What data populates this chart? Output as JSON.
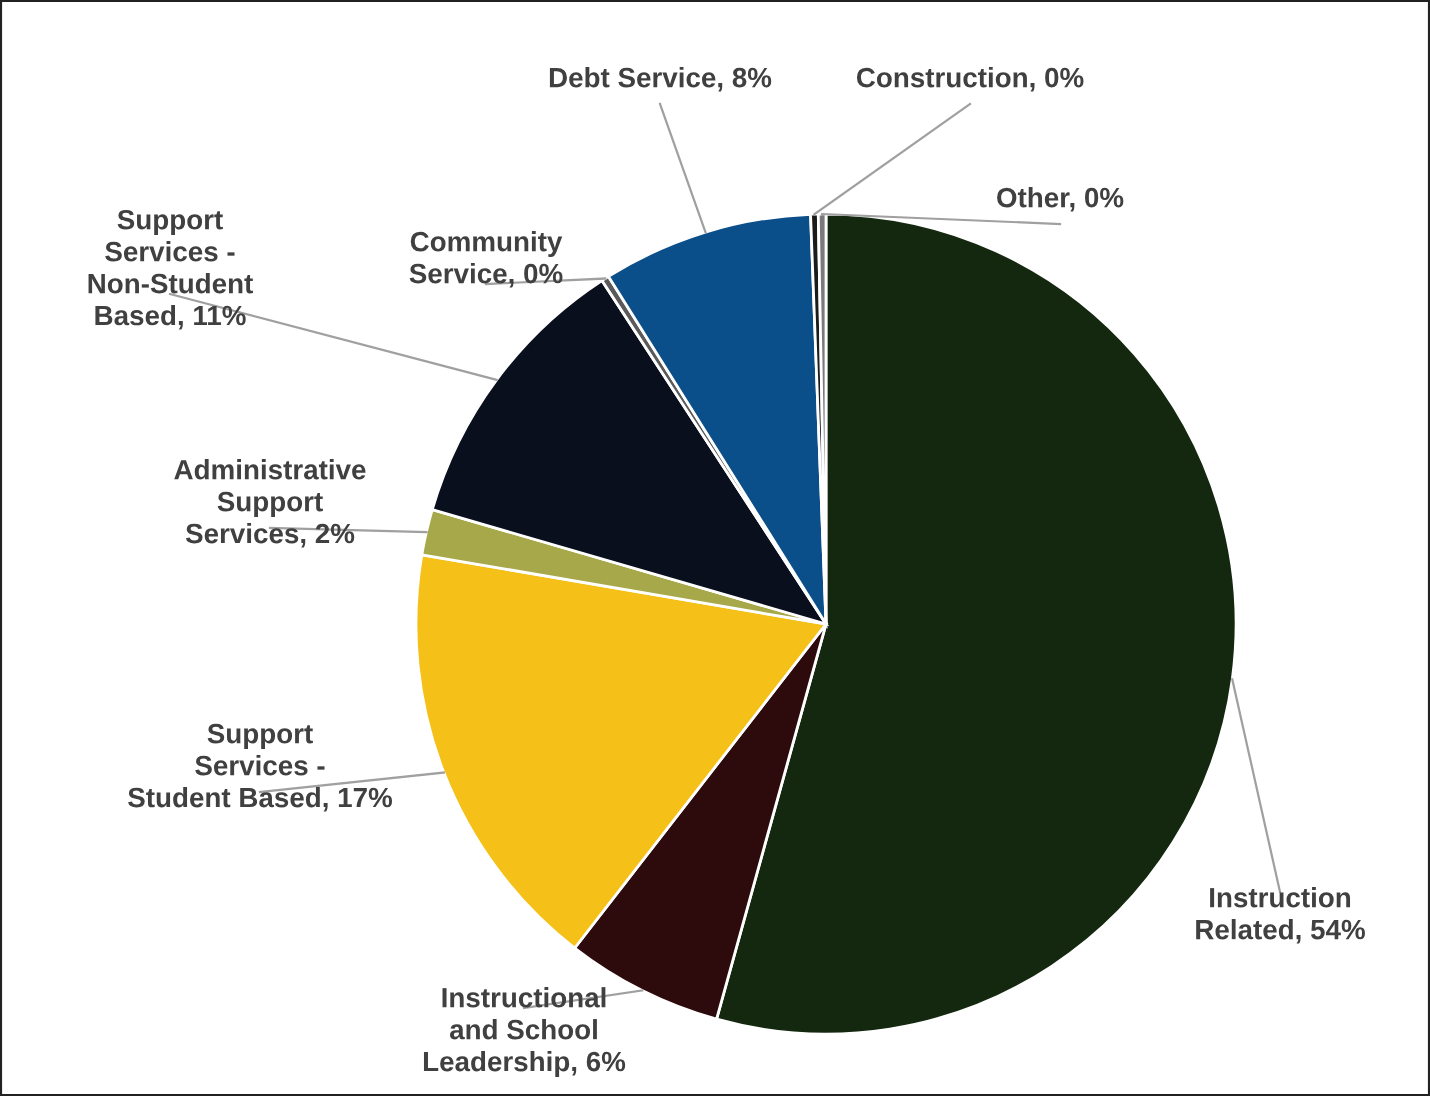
{
  "chart_data": {
    "type": "pie",
    "categories": [
      "Instruction Related",
      "Instructional and School Leadership",
      "Support Services - Student Based",
      "Administrative Support Services",
      "Support Services - Non-Student Based",
      "Community Service",
      "Debt Service",
      "Construction",
      "Other"
    ],
    "values": [
      54.3,
      6.2,
      17.2,
      1.8,
      11.3,
      0.3,
      8.3,
      0.3,
      0.3
    ],
    "value_labels": [
      "54%",
      "6%",
      "17%",
      "2%",
      "11%",
      "0%",
      "8%",
      "0%",
      "0%"
    ],
    "colors": [
      "#14280f",
      "#2d0a0c",
      "#f5c018",
      "#a6a84a",
      "#0a0f1e",
      "#5a5a5a",
      "#0b4f8a",
      "#1b1b1b",
      "#7a7a7a"
    ]
  }
}
